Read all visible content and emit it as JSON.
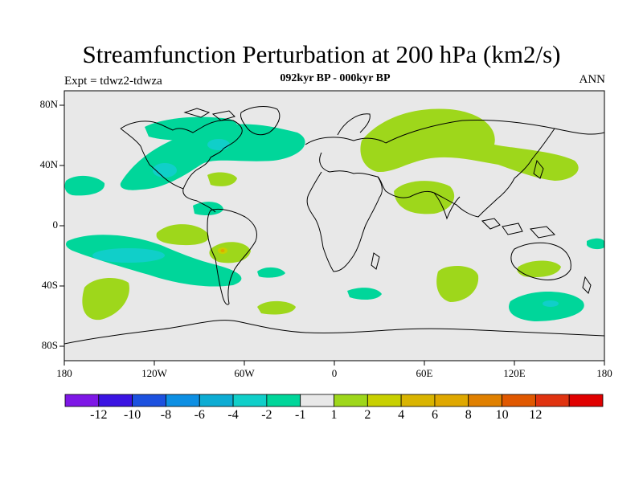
{
  "title": "Streamfunction Perturbation at 200 hPa (km2/s)",
  "subtitle": "092kyr BP - 000kyr BP",
  "left_string": "Expt = tdwz2-tdwza",
  "right_string": "ANN",
  "colors": {
    "background_zero": "#e8e8e8",
    "neg2": "#00d69a",
    "neg4": "#10cfc9",
    "pos2": "#9ed71b",
    "pos4": "#c8d000",
    "pos6": "#dfa800"
  },
  "y_ticks": [
    "80N",
    "40N",
    "0",
    "40S",
    "80S"
  ],
  "x_ticks": [
    "180",
    "120W",
    "60W",
    "0",
    "60E",
    "120E",
    "180"
  ],
  "colorbar": {
    "colors": [
      "#7e17e6",
      "#3b14e2",
      "#1c51df",
      "#0d8fe3",
      "#0dacd3",
      "#10cfc9",
      "#00d69a",
      "#e8e8e8",
      "#9ed71b",
      "#c8d000",
      "#d9b400",
      "#dfa800",
      "#e08000",
      "#e05800",
      "#e03310",
      "#e00000"
    ],
    "labels": [
      "-12",
      "-10",
      "-8",
      "-6",
      "-4",
      "-2",
      "-1",
      "1",
      "2",
      "4",
      "6",
      "8",
      "10",
      "12"
    ]
  }
}
